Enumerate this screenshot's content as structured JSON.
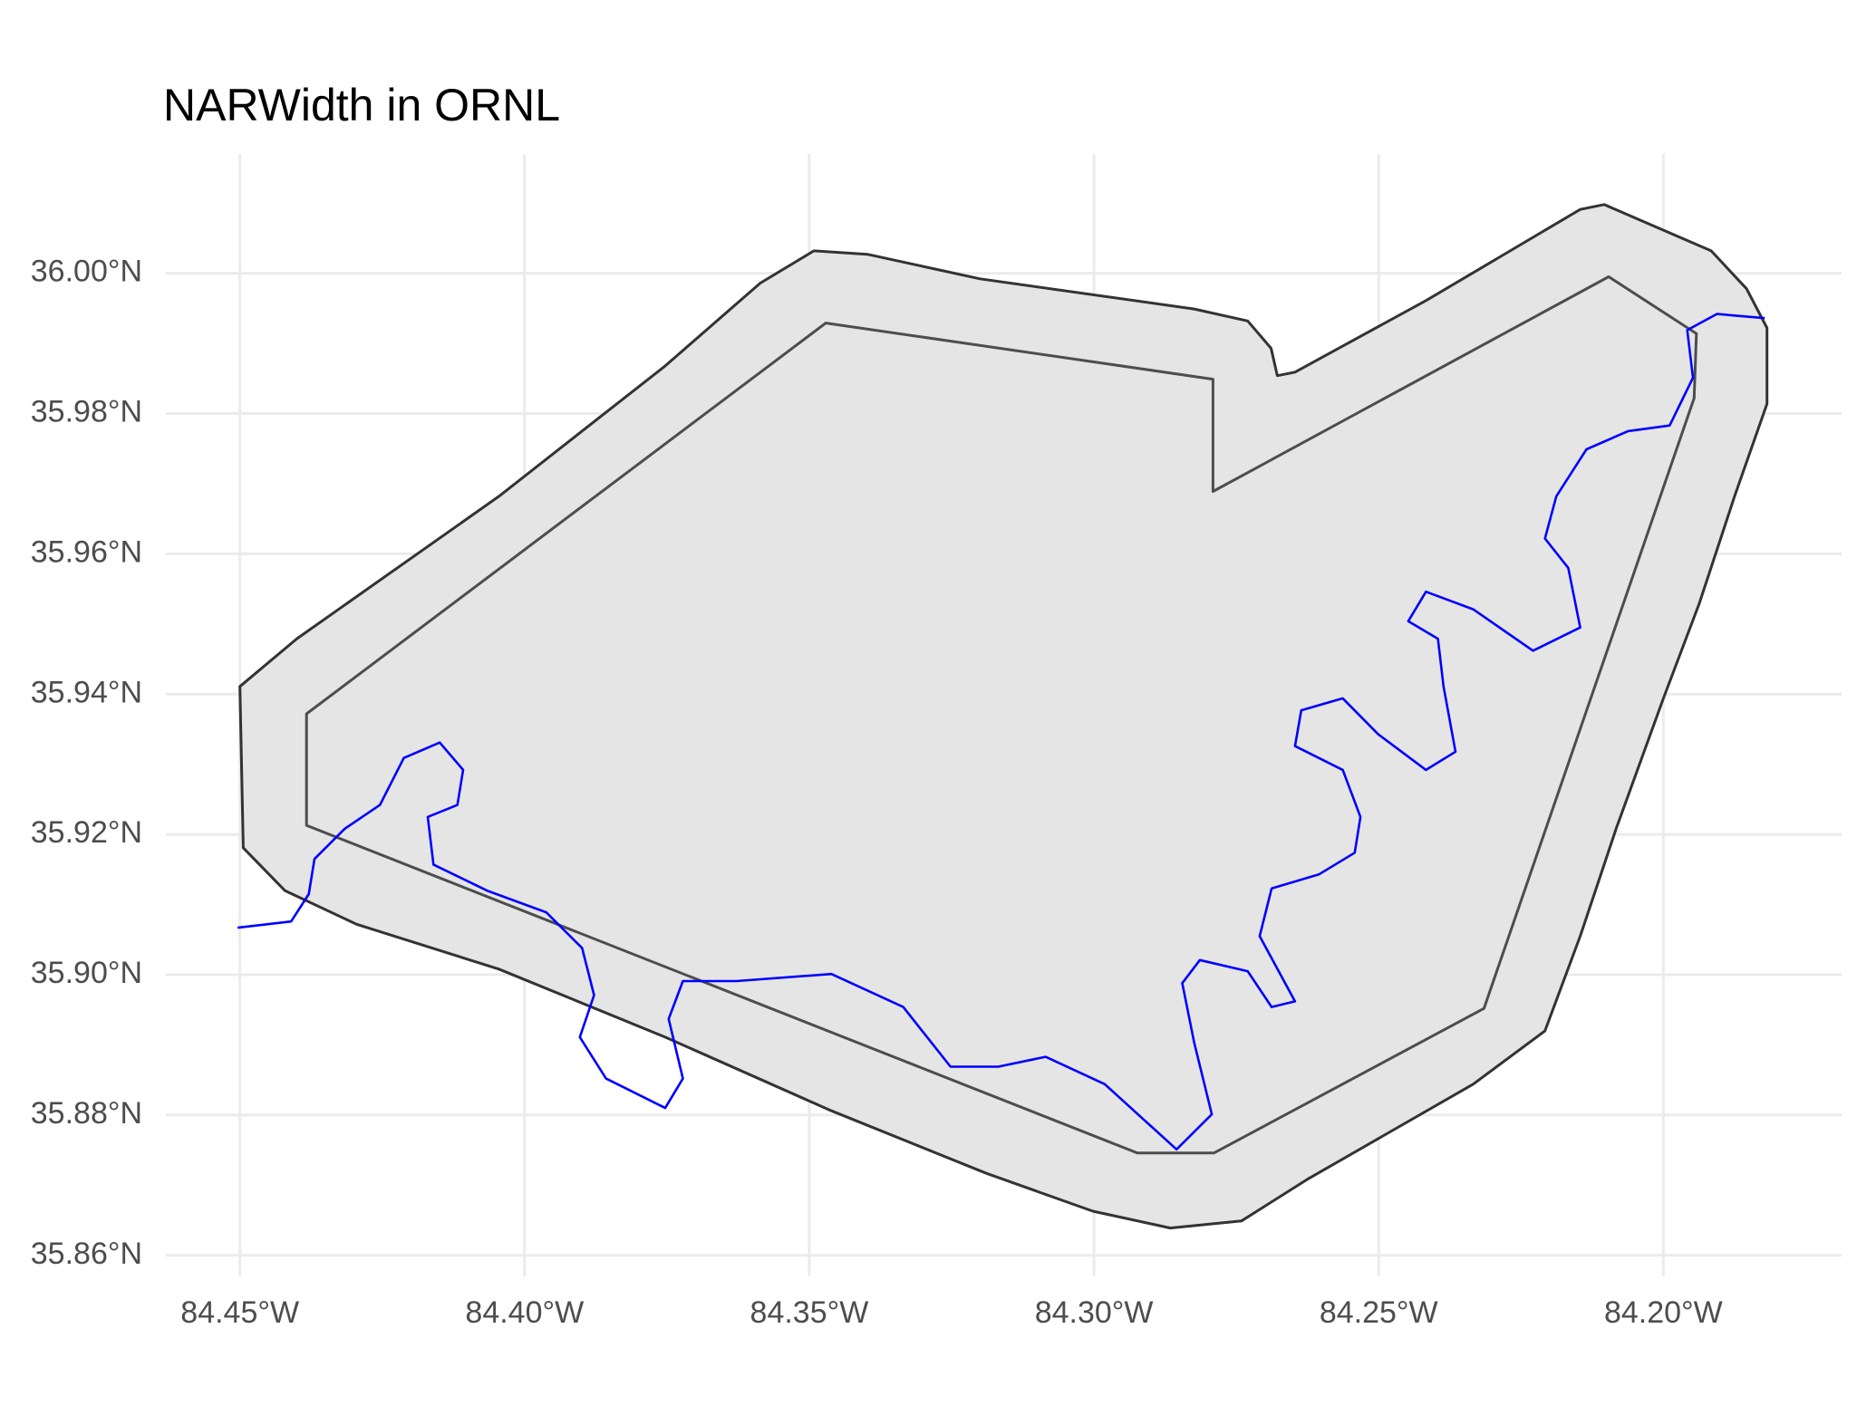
{
  "chart_data": {
    "type": "map",
    "title": "NARWidth in ORNL",
    "xlim": [
      -84.463,
      -84.1687
    ],
    "ylim": [
      35.857,
      36.017
    ],
    "grid": true,
    "xticks": [
      {
        "value": -84.45,
        "label": "84.45°W"
      },
      {
        "value": -84.4,
        "label": "84.40°W"
      },
      {
        "value": -84.35,
        "label": "84.35°W"
      },
      {
        "value": -84.3,
        "label": "84.30°W"
      },
      {
        "value": -84.25,
        "label": "84.25°W"
      },
      {
        "value": -84.2,
        "label": "84.20°W"
      }
    ],
    "yticks": [
      {
        "value": 35.86,
        "label": "35.86°N"
      },
      {
        "value": 35.88,
        "label": "35.88°N"
      },
      {
        "value": 35.9,
        "label": "35.90°N"
      },
      {
        "value": 35.92,
        "label": "35.92°N"
      },
      {
        "value": 35.94,
        "label": "35.94°N"
      },
      {
        "value": 35.96,
        "label": "35.96°N"
      },
      {
        "value": 35.98,
        "label": "35.98°N"
      },
      {
        "value": 36.0,
        "label": "36.00°N"
      }
    ],
    "layers": [
      {
        "type": "polygon",
        "fill": "#e5e5e5",
        "color": "#333333",
        "x": [
          -84.45,
          -84.44,
          -84.4045,
          -84.3753,
          -84.3586,
          -84.3492,
          -84.3398,
          -84.32,
          -84.2824,
          -84.273,
          -84.2689,
          -84.2678,
          -84.2647,
          -84.2417,
          -84.2146,
          -84.2104,
          -84.1916,
          -84.1854,
          -84.1818,
          -84.1818,
          -84.1875,
          -84.1937,
          -84.2,
          -84.2083,
          -84.2146,
          -84.2208,
          -84.2334,
          -84.2626,
          -84.2741,
          -84.2866,
          -84.3002,
          -84.3189,
          -84.3461,
          -84.3753,
          -84.4045,
          -84.4295,
          -84.4421,
          -84.4494
        ],
        "y": [
          35.9411,
          35.9479,
          35.9682,
          35.9868,
          35.9986,
          36.0032,
          36.0027,
          35.9992,
          35.9949,
          35.9932,
          35.9893,
          35.9854,
          35.9859,
          35.9961,
          36.0091,
          36.0098,
          36.0032,
          35.9978,
          35.9922,
          35.9814,
          35.9682,
          35.9529,
          35.9394,
          35.9208,
          35.9055,
          35.892,
          35.8844,
          35.8708,
          35.8649,
          35.8639,
          35.8663,
          35.8717,
          35.8806,
          35.8911,
          35.9008,
          35.9072,
          35.912,
          35.9181
        ]
      },
      {
        "type": "polygon",
        "fill": "none",
        "color": "#4d4d4d",
        "x": [
          -84.4383,
          -84.3471,
          -84.2791,
          -84.2791,
          -84.2096,
          -84.1942,
          -84.1946,
          -84.2315,
          -84.2789,
          -84.2924,
          -84.4383
        ],
        "y": [
          35.9372,
          35.9929,
          35.9849,
          35.9689,
          35.9995,
          35.9914,
          35.9822,
          35.8952,
          35.8746,
          35.8746,
          35.9213
        ]
      },
      {
        "type": "line",
        "color": "#0000ff",
        "x": [
          -84.4504,
          -84.441,
          -84.4379,
          -84.4369,
          -84.4316,
          -84.4254,
          -84.4212,
          -84.4149,
          -84.4108,
          -84.4118,
          -84.417,
          -84.416,
          -84.4066,
          -84.3962,
          -84.3899,
          -84.3878,
          -84.3903,
          -84.3857,
          -84.3753,
          -84.3722,
          -84.3747,
          -84.3722,
          -84.3628,
          -84.3461,
          -84.3335,
          -84.3252,
          -84.3168,
          -84.3085,
          -84.2981,
          -84.2855,
          -84.2793,
          -84.2824,
          -84.2845,
          -84.2814,
          -84.273,
          -84.2688,
          -84.2647,
          -84.2709,
          -84.2688,
          -84.2605,
          -84.2542,
          -84.2532,
          -84.2563,
          -84.2647,
          -84.2636,
          -84.2563,
          -84.2501,
          -84.2417,
          -84.2365,
          -84.2386,
          -84.2396,
          -84.2448,
          -84.2417,
          -84.2334,
          -84.2229,
          -84.2146,
          -84.2167,
          -84.2208,
          -84.2188,
          -84.2135,
          -84.2062,
          -84.1989,
          -84.1948,
          -84.1958,
          -84.1906,
          -84.1822
        ],
        "y": [
          35.9067,
          35.9076,
          35.9115,
          35.9165,
          35.9208,
          35.9242,
          35.9309,
          35.9331,
          35.9292,
          35.9242,
          35.9225,
          35.9157,
          35.912,
          35.9089,
          35.9038,
          35.8971,
          35.8911,
          35.8852,
          35.881,
          35.8852,
          35.8937,
          35.8991,
          35.8991,
          35.9001,
          35.8954,
          35.8869,
          35.8869,
          35.8883,
          35.8844,
          35.8751,
          35.8801,
          35.8903,
          35.8988,
          35.9021,
          35.9005,
          35.8954,
          35.8962,
          35.9055,
          35.9123,
          35.9143,
          35.9174,
          35.9225,
          35.9292,
          35.9326,
          35.9377,
          35.9394,
          35.9343,
          35.9292,
          35.9318,
          35.9411,
          35.9479,
          35.9504,
          35.9546,
          35.9521,
          35.9462,
          35.9495,
          35.958,
          35.9622,
          35.9682,
          35.9749,
          35.9775,
          35.9783,
          35.9851,
          35.9919,
          35.9942,
          35.9936
        ]
      }
    ]
  }
}
